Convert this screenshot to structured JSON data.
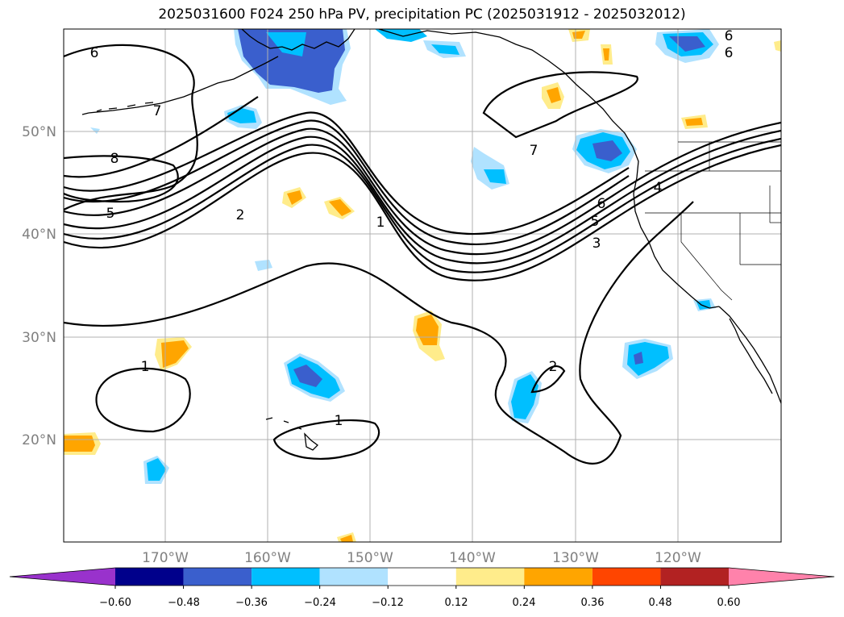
{
  "title": "2025031600 F024 250 hPa PV, precipitation PC (2025031912 - 2025032012)",
  "lat_ticks": [
    "50°N",
    "40°N",
    "30°N",
    "20°N"
  ],
  "lon_ticks": [
    "170°W",
    "160°W",
    "150°W",
    "140°W",
    "130°W",
    "120°W"
  ],
  "colorbar": {
    "labels": [
      "−0.60",
      "−0.48",
      "−0.36",
      "−0.24",
      "−0.12",
      "0.12",
      "0.24",
      "0.36",
      "0.48",
      "0.60"
    ],
    "colors": [
      "#9932cc",
      "#00008b",
      "#3a5fcd",
      "#00bfff",
      "#b0e2ff",
      "#ffffff",
      "#ffec8b",
      "#ffa500",
      "#ff4500",
      "#b22222",
      "#ff82ab"
    ]
  },
  "contour_labels": [
    "6",
    "7",
    "8",
    "5",
    "2",
    "1",
    "1",
    "1",
    "2",
    "7",
    "6",
    "5",
    "4",
    "3",
    "6",
    "6"
  ],
  "colors": {
    "grid": "#b0b0b0",
    "coast": "#000000",
    "contour": "#000000"
  }
}
